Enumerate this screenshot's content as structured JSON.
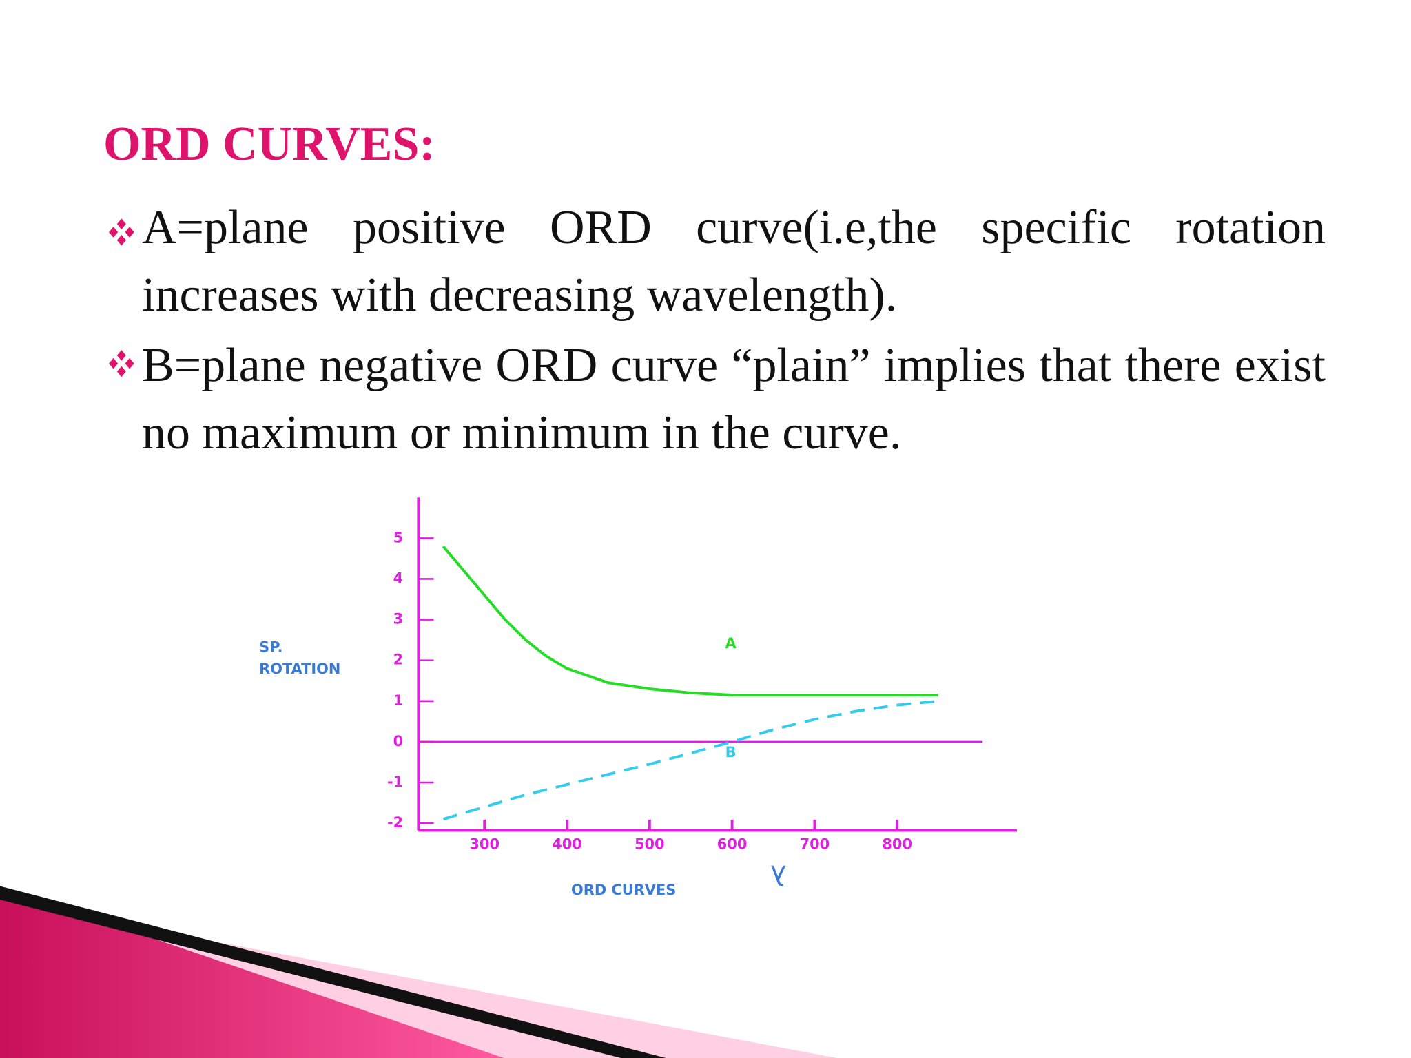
{
  "slide": {
    "title": "ORD CURVES:",
    "bullets": [
      "A=plane positive ORD curve(i.e,the specific rotation increases with decreasing wavelength).",
      "B=plane negative ORD curve “plain” implies that there exist no maximum or minimum in the curve."
    ]
  },
  "chart_data": {
    "type": "line",
    "y_label_lines": [
      "SP.",
      "ROTATION"
    ],
    "x_label": "ORD CURVES",
    "x_symbol": "λ",
    "xlim": [
      220,
      945
    ],
    "xticks": [
      300,
      400,
      500,
      600,
      700,
      800
    ],
    "ylim": [
      -2,
      6
    ],
    "yticks": [
      5,
      4,
      3,
      2,
      1,
      0,
      -1,
      -2
    ],
    "axis_color": "#e020e0",
    "series": [
      {
        "name": "A",
        "color": "#22dd22",
        "dashed": false,
        "x": [
          250,
          275,
          300,
          325,
          350,
          375,
          400,
          450,
          500,
          550,
          600,
          700,
          800,
          850
        ],
        "values": [
          4.8,
          4.2,
          3.6,
          3.0,
          2.5,
          2.1,
          1.8,
          1.45,
          1.3,
          1.2,
          1.15,
          1.15,
          1.15,
          1.15
        ]
      },
      {
        "name": "B",
        "color": "#33ccee",
        "dashed": true,
        "x": [
          250,
          300,
          350,
          400,
          450,
          500,
          550,
          600,
          650,
          700,
          750,
          800,
          850
        ],
        "values": [
          -1.9,
          -1.6,
          -1.3,
          -1.05,
          -0.8,
          -0.55,
          -0.28,
          0,
          0.3,
          0.55,
          0.75,
          0.9,
          1.0
        ]
      }
    ]
  }
}
